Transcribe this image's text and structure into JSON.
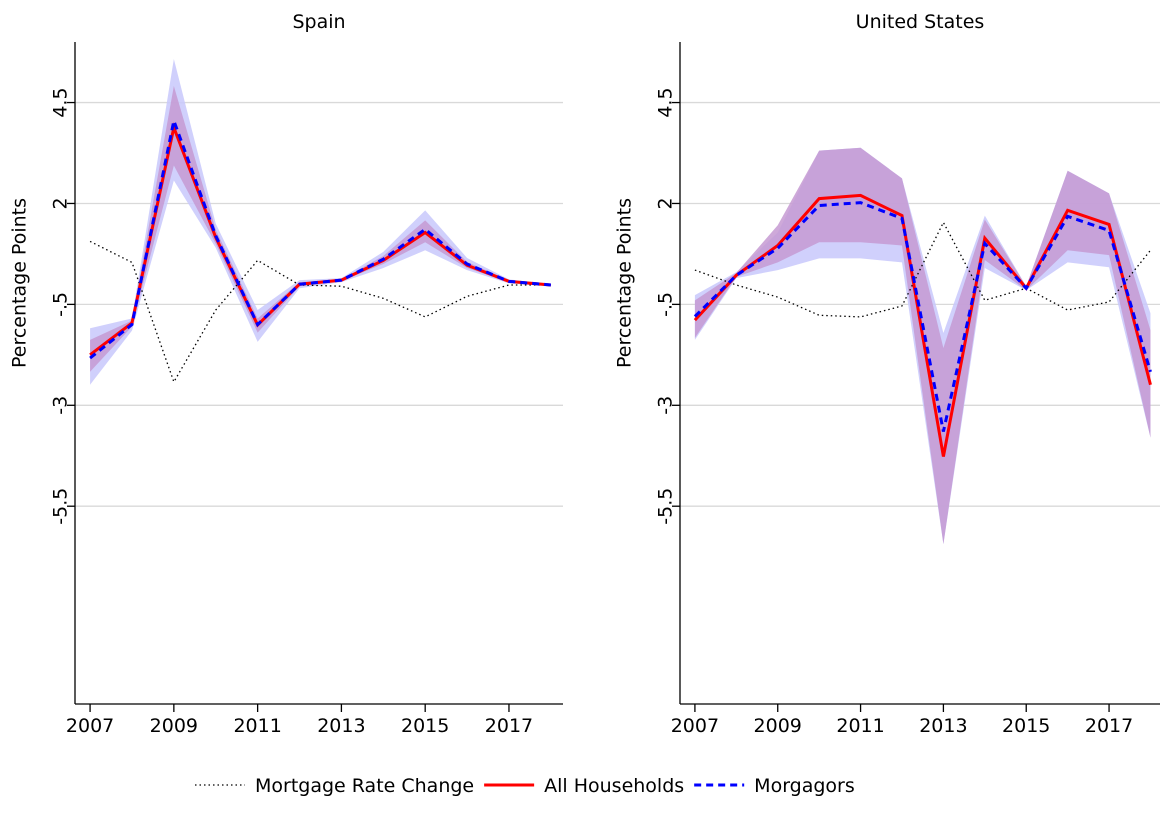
{
  "chart_data": [
    {
      "type": "line",
      "title": "Spain",
      "ylabel": "Percentage Points",
      "x": [
        2007,
        2008,
        2009,
        2010,
        2011,
        2012,
        2013,
        2014,
        2015,
        2016,
        2017,
        2018
      ],
      "xlim": [
        2006.64,
        2018.29
      ],
      "xticks": [
        2007,
        2009,
        2011,
        2013,
        2015,
        2017
      ],
      "ylim": [
        -10.4,
        6
      ],
      "yticks": [
        {
          "value": -5.5,
          "label": "-5.5"
        },
        -3,
        {
          "value": -0.5,
          "label": "-.5"
        },
        2,
        4.5
      ],
      "grid": true,
      "bands": [
        {
          "color": "#c8c8fc",
          "upper": [
            -1.09,
            -0.85,
            5.58,
            1.5,
            -0.64,
            0.1,
            0.15,
            0.8,
            1.83,
            0.65,
            0.12,
            0
          ],
          "lower": [
            -2.49,
            -1.15,
            2.57,
            0.9,
            -1.43,
            -0.1,
            0.05,
            0.4,
            0.84,
            0.35,
            0.02,
            -0.05
          ]
        },
        {
          "color": "#c59ad2",
          "upper": [
            -1.38,
            -0.9,
            4.91,
            1.35,
            -0.85,
            0.05,
            0.12,
            0.7,
            1.58,
            0.55,
            0.1,
            0
          ],
          "lower": [
            -2.17,
            -1.05,
            2.94,
            1.0,
            -1.2,
            -0.05,
            0.08,
            0.5,
            1.04,
            0.4,
            0.05,
            -0.05
          ]
        }
      ],
      "series": [
        {
          "name": "Mortgage Rate Change",
          "color": "#000000",
          "style": "dotted",
          "values": [
            1.06,
            0.54,
            -2.42,
            -0.64,
            0.59,
            -0.02,
            -0.05,
            -0.35,
            -0.81,
            -0.3,
            -0.02,
            -0.02
          ]
        },
        {
          "name": "All Households",
          "color": "#ff0000",
          "style": "solid",
          "values": [
            -1.75,
            -0.96,
            3.88,
            1.16,
            -1.01,
            0.0,
            0.1,
            0.59,
            1.28,
            0.47,
            0.07,
            -0.02
          ]
        },
        {
          "name": "Morgagors",
          "color": "#0000ff",
          "style": "dashed",
          "values": [
            -1.83,
            -1.0,
            4.05,
            1.2,
            -1.0,
            0.0,
            0.1,
            0.62,
            1.36,
            0.5,
            0.07,
            -0.02
          ]
        }
      ]
    },
    {
      "type": "line",
      "title": "United States",
      "ylabel": "Percentage Points",
      "x": [
        2007,
        2008,
        2009,
        2010,
        2011,
        2012,
        2013,
        2014,
        2015,
        2016,
        2017,
        2018
      ],
      "xlim": [
        2006.64,
        2018.23
      ],
      "xticks": [
        2007,
        2009,
        2011,
        2013,
        2015,
        2017
      ],
      "ylim": [
        -10.4,
        6
      ],
      "yticks": [
        {
          "value": -5.5,
          "label": "-5.5"
        },
        -3,
        {
          "value": -0.5,
          "label": "-.5"
        },
        2,
        4.5
      ],
      "grid": true,
      "bands": [
        {
          "color": "#c8c8fc",
          "upper": [
            -0.27,
            0.3,
            1.28,
            3.31,
            3.38,
            2.62,
            -1.21,
            1.7,
            -0.05,
            2.81,
            2.25,
            -0.72
          ],
          "lower": [
            -1.38,
            0.15,
            0.35,
            0.64,
            0.64,
            0.54,
            -6.44,
            0.4,
            -0.15,
            0.54,
            0.42,
            -3.8
          ]
        },
        {
          "color": "#c59ad2",
          "upper": [
            -0.4,
            0.28,
            1.46,
            3.31,
            3.38,
            2.62,
            -1.58,
            1.6,
            -0.05,
            2.81,
            2.25,
            -1.14
          ],
          "lower": [
            -1.33,
            0.18,
            0.54,
            1.04,
            1.04,
            0.96,
            -6.44,
            0.6,
            -0.15,
            0.84,
            0.72,
            -3.8
          ]
        }
      ],
      "series": [
        {
          "color": "#000000",
          "style": "dotted",
          "values": [
            0.35,
            -0.02,
            -0.32,
            -0.77,
            -0.81,
            -0.54,
            1.53,
            -0.4,
            -0.1,
            -0.64,
            -0.44,
            0.84
          ]
        },
        {
          "color": "#ff0000",
          "style": "solid",
          "values": [
            -0.89,
            0.22,
            0.96,
            2.12,
            2.2,
            1.7,
            -4.27,
            1.14,
            -0.1,
            1.83,
            1.48,
            -2.49
          ]
        },
        {
          "color": "#0000ff",
          "style": "dashed",
          "values": [
            -0.8,
            0.22,
            0.89,
            1.95,
            2.02,
            1.63,
            -3.65,
            1.01,
            -0.1,
            1.68,
            1.33,
            -2.17
          ]
        }
      ]
    }
  ]
}
